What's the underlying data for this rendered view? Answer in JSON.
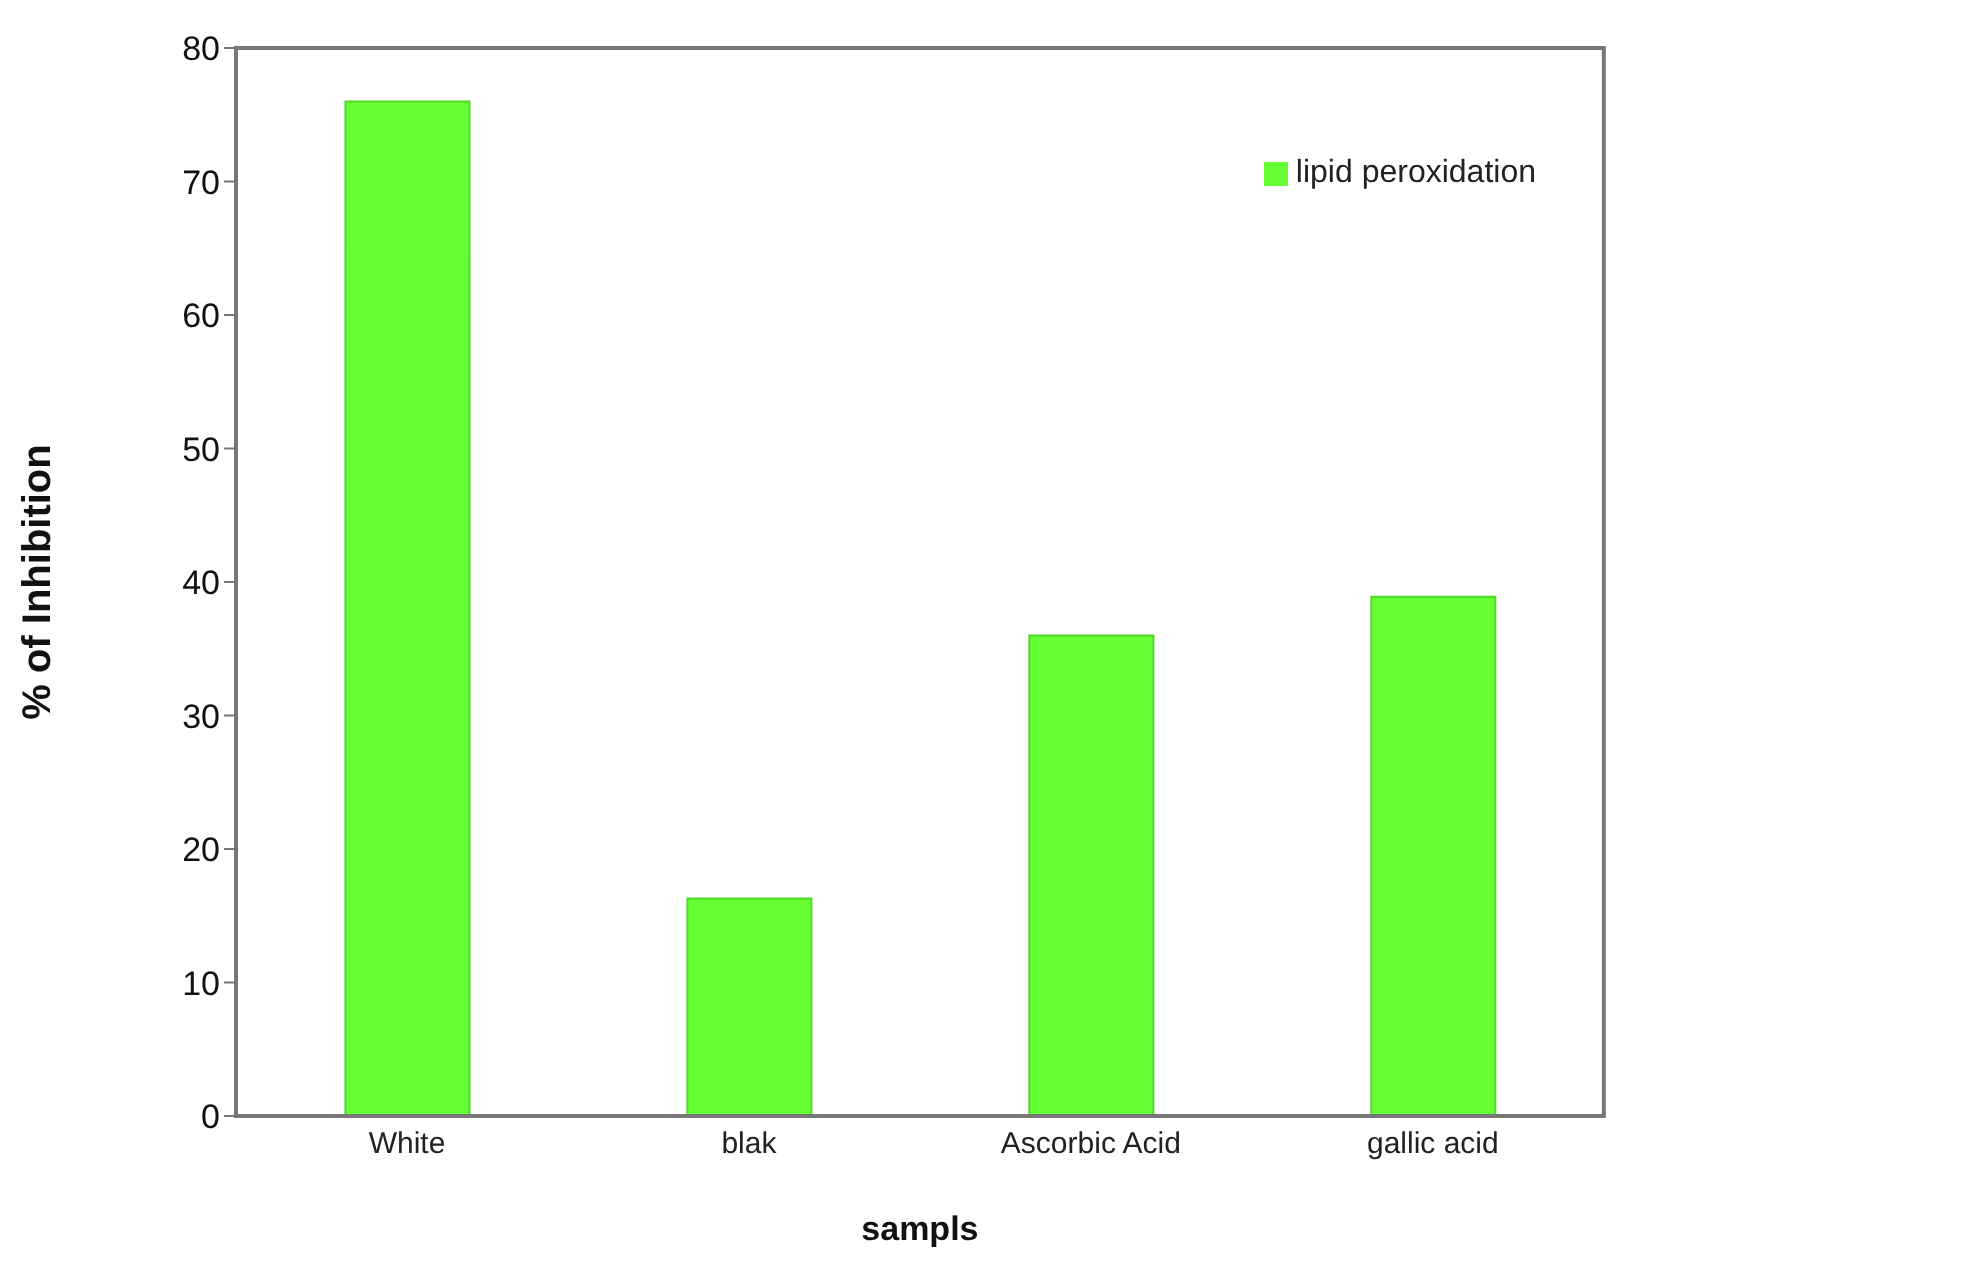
{
  "chart_data": {
    "type": "bar",
    "xlabel": "sampls",
    "ylabel": "% of Inhibition",
    "categories": [
      "White",
      "blak",
      "Ascorbic Acid",
      "gallic acid"
    ],
    "series": [
      {
        "name": "lipid peroxidation",
        "color": "#66ff33",
        "values": [
          76,
          16.3,
          36,
          38.9
        ]
      }
    ],
    "ylim": [
      0,
      80
    ],
    "yticks": [
      0,
      10,
      20,
      30,
      40,
      50,
      60,
      70,
      80
    ],
    "grid": false,
    "legend": "top right"
  }
}
